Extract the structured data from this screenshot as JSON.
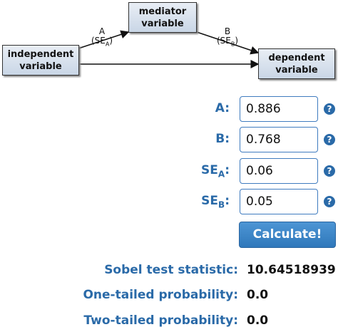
{
  "diagram": {
    "mediator": [
      "mediator",
      "variable"
    ],
    "independent": [
      "independent",
      "variable"
    ],
    "dependent": [
      "dependent",
      "variable"
    ],
    "path_a": {
      "letter": "A",
      "prefix": "(SE",
      "sub": "A",
      "suffix": ")"
    },
    "path_b": {
      "letter": "B",
      "prefix": "(SE",
      "sub": "B",
      "suffix": ")"
    }
  },
  "form": {
    "fields": [
      {
        "label": "A:",
        "value": "0.886"
      },
      {
        "label": "B:",
        "value": "0.768"
      },
      {
        "label": "SE",
        "sub": "A",
        "colon": ":",
        "value": "0.06"
      },
      {
        "label": "SE",
        "sub": "B",
        "colon": ":",
        "value": "0.05"
      }
    ],
    "help_icon": "?",
    "button": "Calculate!"
  },
  "results": [
    {
      "label": "Sobel test statistic:",
      "value": "10.64518939"
    },
    {
      "label": "One-tailed probability:",
      "value": "0.0"
    },
    {
      "label": "Two-tailed probability:",
      "value": "0.0"
    }
  ]
}
